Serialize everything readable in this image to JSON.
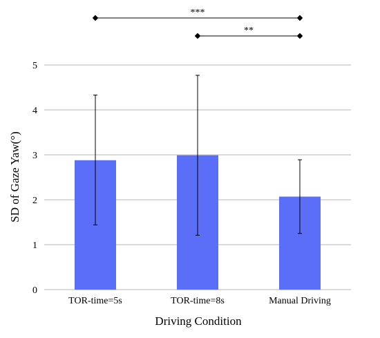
{
  "chart_data": {
    "type": "bar",
    "title": "",
    "xlabel": "Driving Condition",
    "ylabel": "SD of Gaze Yaw(°)",
    "categories": [
      "TOR-time=5s",
      "TOR-time=8s",
      "Manual Driving"
    ],
    "values": [
      2.88,
      2.99,
      2.07
    ],
    "error_upper": [
      4.33,
      4.77,
      2.89
    ],
    "error_lower": [
      1.44,
      1.21,
      1.25
    ],
    "ylim": [
      0,
      5
    ],
    "yticks": [
      0,
      1,
      2,
      3,
      4,
      5
    ],
    "grid": true,
    "bar_color": "#5b6ef8",
    "significance": [
      {
        "from": 0,
        "to": 2,
        "label": "***"
      },
      {
        "from": 1,
        "to": 2,
        "label": "**"
      }
    ]
  }
}
